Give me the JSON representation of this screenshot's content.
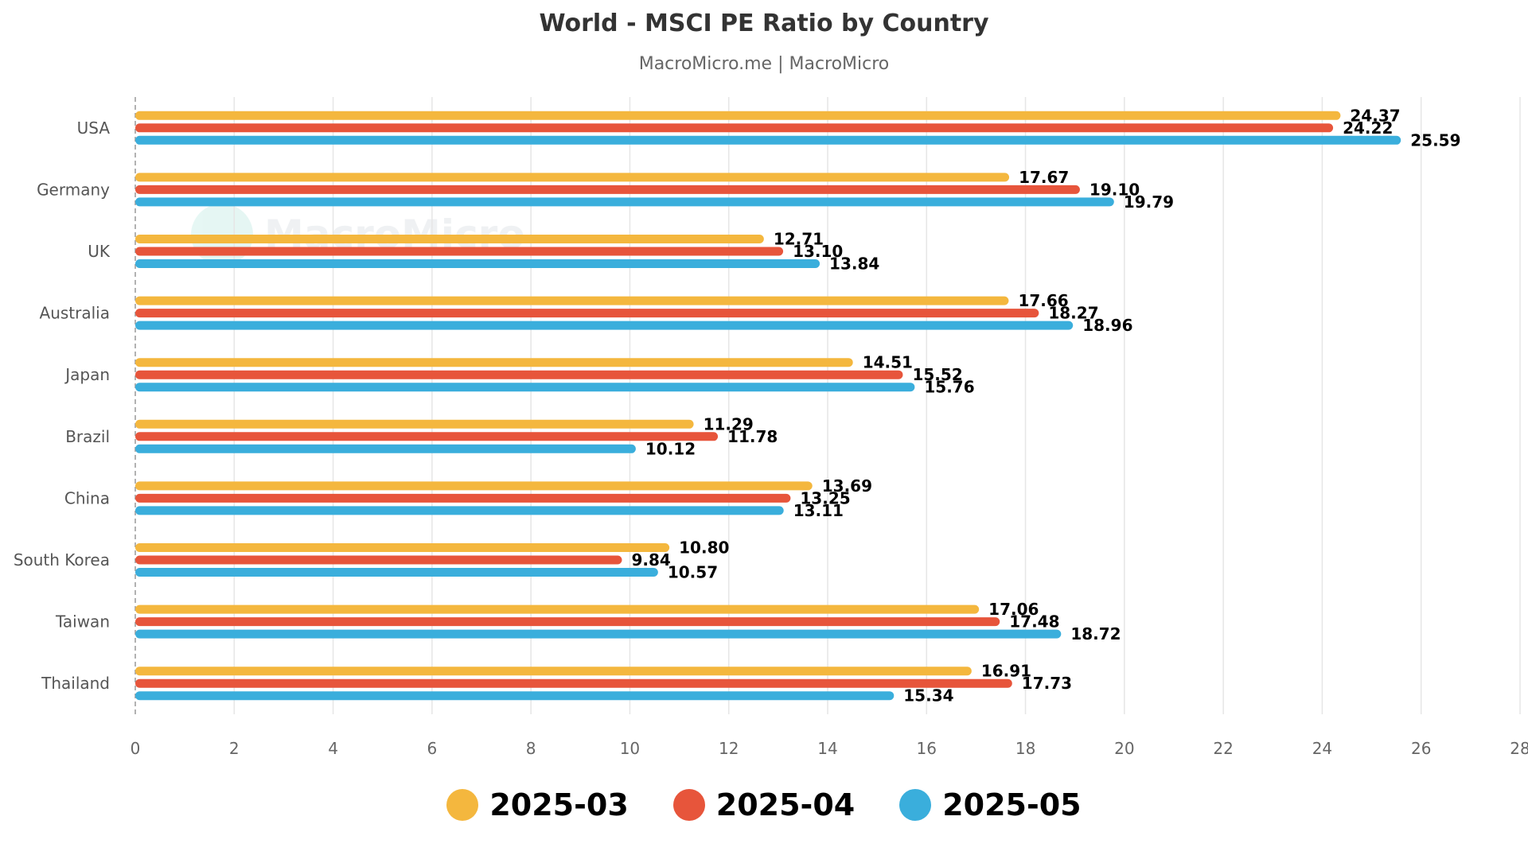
{
  "title": "World - MSCI PE Ratio by Country",
  "subtitle": "MacroMicro.me | MacroMicro",
  "watermark": "MacroMicro",
  "chart_data": {
    "type": "bar",
    "orientation": "horizontal",
    "title": "World - MSCI PE Ratio by Country",
    "subtitle": "MacroMicro.me | MacroMicro",
    "categories": [
      "USA",
      "Germany",
      "UK",
      "Australia",
      "Japan",
      "Brazil",
      "China",
      "South Korea",
      "Taiwan",
      "Thailand"
    ],
    "series": [
      {
        "name": "2025-03",
        "color": "#f4b73e",
        "values": [
          24.37,
          17.67,
          12.71,
          17.66,
          14.51,
          11.29,
          13.69,
          10.8,
          17.06,
          16.91
        ]
      },
      {
        "name": "2025-04",
        "color": "#e7553b",
        "values": [
          24.22,
          19.1,
          13.1,
          18.27,
          15.52,
          11.78,
          13.25,
          9.84,
          17.48,
          17.73
        ]
      },
      {
        "name": "2025-05",
        "color": "#3aaedc",
        "values": [
          25.59,
          19.79,
          13.84,
          18.96,
          15.76,
          10.12,
          13.11,
          10.57,
          18.72,
          15.34
        ]
      }
    ],
    "xlim": [
      0,
      28
    ],
    "xticks": [
      0,
      2,
      4,
      6,
      8,
      10,
      12,
      14,
      16,
      18,
      20,
      22,
      24,
      26,
      28
    ],
    "grid": true,
    "legend_position": "bottom-center",
    "xlabel": "",
    "ylabel": ""
  }
}
